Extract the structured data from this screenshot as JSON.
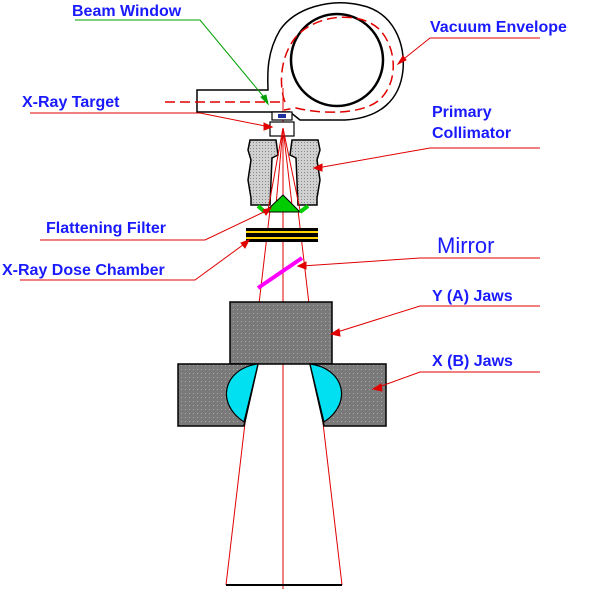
{
  "labels": {
    "beam_window": "Beam Window",
    "vacuum_envelope": "Vacuum Envelope",
    "xray_target": "X-Ray Target",
    "primary_collimator_line1": "Primary",
    "primary_collimator_line2": "Collimator",
    "flattening_filter": "Flattening Filter",
    "mirror": "Mirror",
    "dose_chamber": "X-Ray Dose Chamber",
    "y_jaws": "Y (A) Jaws",
    "x_jaws": "X (B) Jaws"
  },
  "colors": {
    "label_text": "#1a1aff",
    "beam_line": "#e00000",
    "leader_red": "#e00000",
    "leader_green": "#00a000",
    "jaw_fill": "#7d7d7d",
    "collimator_fill": "#c8c8c8",
    "filter_fill": "#00cc00",
    "cyan_insert": "#00e0f0",
    "mirror": "#ff00ff",
    "chamber_band": "#ffd400"
  }
}
